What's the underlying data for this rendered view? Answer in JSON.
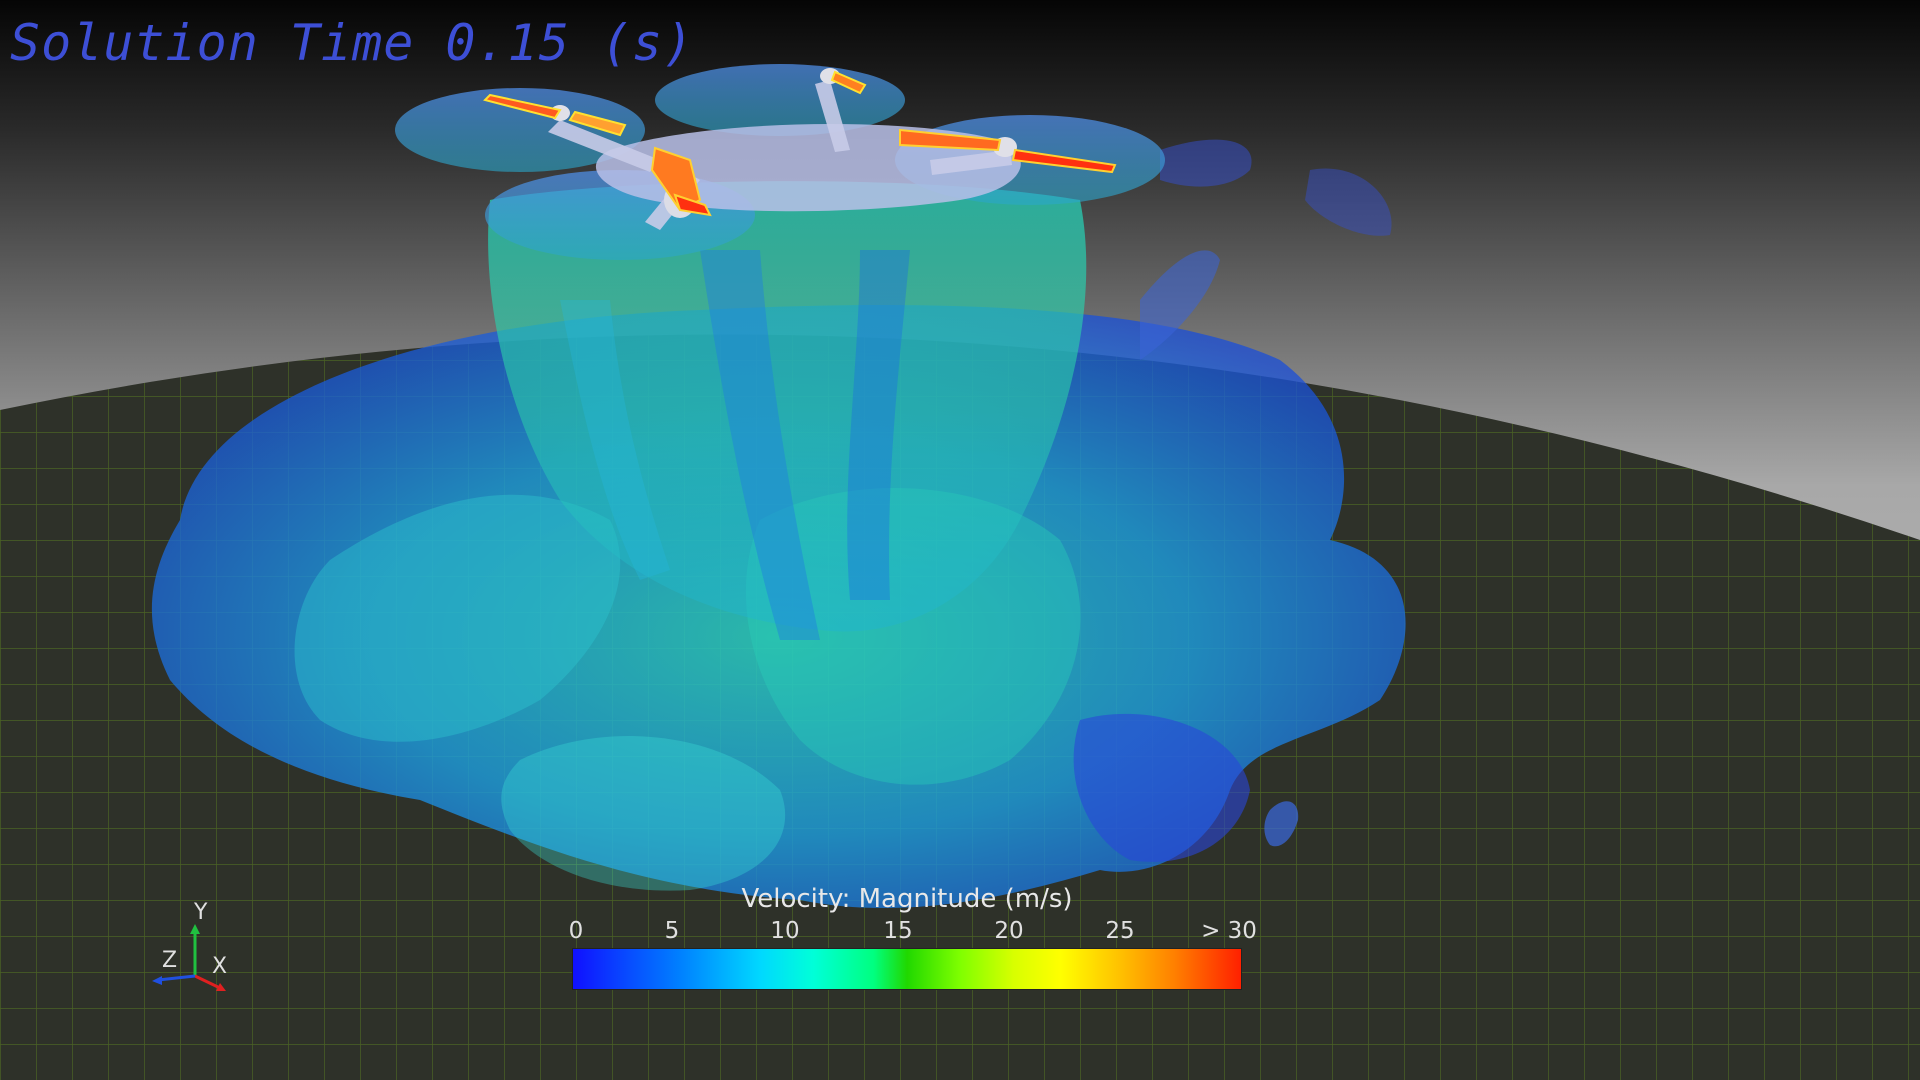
{
  "title": "Solution Time 0.15 (s)",
  "legend": {
    "title": "Velocity: Magnitude (m/s)",
    "ticks": [
      "0",
      "5",
      "10",
      "15",
      "20",
      "25",
      "> 30"
    ]
  },
  "axes": {
    "x": "X",
    "y": "Y",
    "z": "Z"
  },
  "colors": {
    "title_text": "#3d4fd6",
    "ground": "#3a3d33",
    "grid": "#5f7a2a",
    "flow_low": "#1a5cff",
    "flow_mid": "#1fc6c8",
    "flow_high": "#ff2000"
  }
}
